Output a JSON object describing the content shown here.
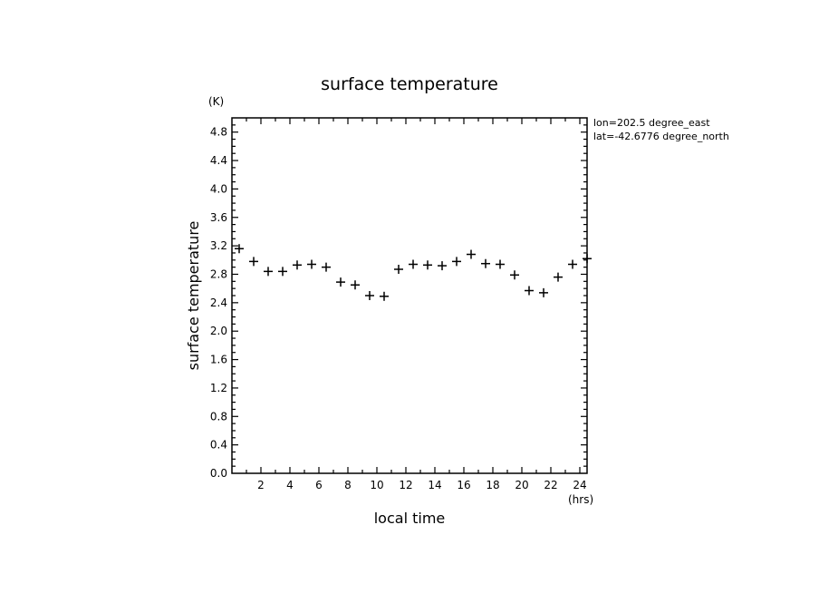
{
  "chart_data": {
    "type": "scatter",
    "title": "surface temperature",
    "xlabel": "local time",
    "ylabel": "surface temperature",
    "x_unit": "(hrs)",
    "y_unit": "(K)",
    "xlim": [
      0,
      24.5
    ],
    "ylim": [
      0,
      5
    ],
    "x_ticks": [
      2,
      4,
      6,
      8,
      10,
      12,
      14,
      16,
      18,
      20,
      22,
      24
    ],
    "y_ticks": [
      "0.0",
      "0.4",
      "0.8",
      "1.2",
      "1.6",
      "2.0",
      "2.4",
      "2.8",
      "3.2",
      "3.6",
      "4.0",
      "4.4",
      "4.8"
    ],
    "annotations": [
      "lon=202.5 degree_east",
      "lat=-42.6776 degree_north"
    ],
    "x": [
      0.5,
      1.5,
      2.5,
      3.5,
      4.5,
      5.5,
      6.5,
      7.5,
      8.5,
      9.5,
      10.5,
      11.5,
      12.5,
      13.5,
      14.5,
      15.5,
      16.5,
      17.5,
      18.5,
      19.5,
      20.5,
      21.5,
      22.5,
      23.5,
      24.5
    ],
    "y": [
      3.16,
      2.98,
      2.84,
      2.84,
      2.93,
      2.94,
      2.9,
      2.69,
      2.65,
      2.5,
      2.49,
      2.87,
      2.94,
      2.93,
      2.92,
      2.98,
      3.08,
      2.95,
      2.94,
      2.79,
      2.57,
      2.54,
      2.76,
      2.94,
      3.02
    ],
    "grid": false
  }
}
